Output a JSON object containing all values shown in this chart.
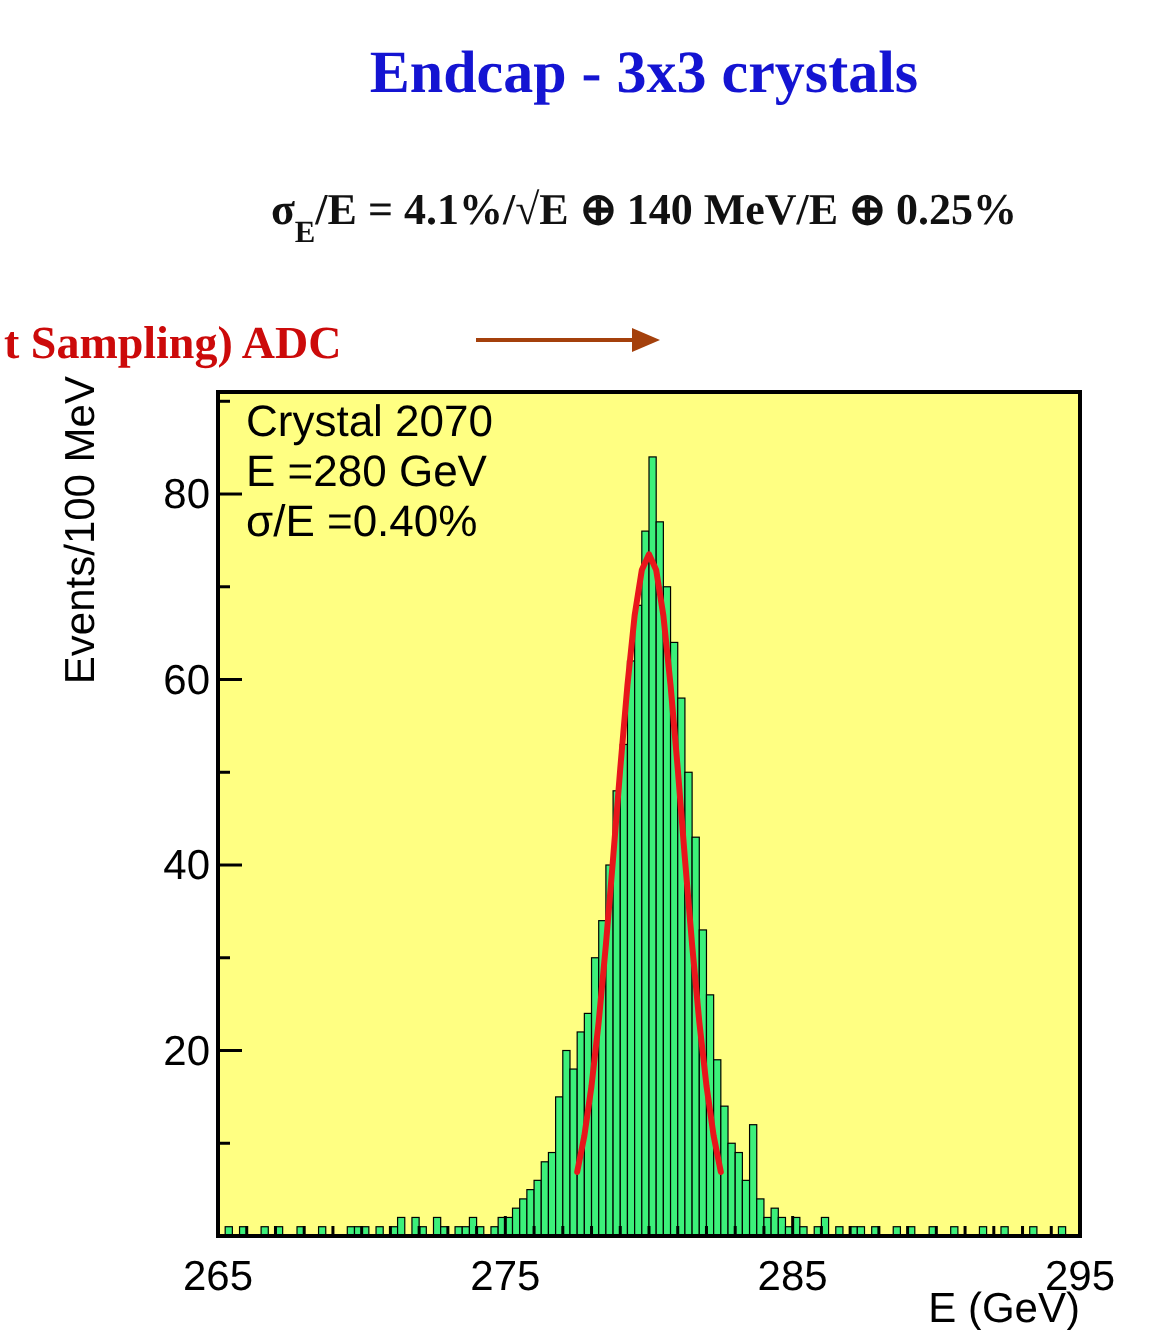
{
  "chart_data": {
    "type": "histogram",
    "title": "Endcap - 3x3 crystals",
    "subtitle": "σ$_{E}$/E = 4.1%/√E ⊕ 140 MeV/E ⊕ 0.25%",
    "xlabel": "E (GeV)",
    "ylabel": "Events/100 MeV",
    "annotations": [
      "t Sampling) ADC",
      "Crystal 2070",
      "E =280 GeV",
      "σ/E =0.40%"
    ],
    "xlim": [
      265,
      295
    ],
    "ylim": [
      0,
      91
    ],
    "xticks": [
      265,
      {
        "value": 266,
        "label": null
      },
      {
        "value": 267,
        "label": null
      },
      {
        "value": 268,
        "label": null
      },
      {
        "value": 269,
        "label": null
      },
      {
        "value": 270,
        "label": null
      },
      {
        "value": 271,
        "label": null
      },
      {
        "value": 272,
        "label": null
      },
      {
        "value": 273,
        "label": null
      },
      {
        "value": 274,
        "label": null
      },
      275,
      {
        "value": 276,
        "label": null
      },
      {
        "value": 277,
        "label": null
      },
      {
        "value": 278,
        "label": null
      },
      {
        "value": 279,
        "label": null
      },
      {
        "value": 280,
        "label": null
      },
      {
        "value": 281,
        "label": null
      },
      {
        "value": 282,
        "label": null
      },
      {
        "value": 283,
        "label": null
      },
      {
        "value": 284,
        "label": null
      },
      285,
      {
        "value": 286,
        "label": null
      },
      {
        "value": 287,
        "label": null
      },
      {
        "value": 288,
        "label": null
      },
      {
        "value": 289,
        "label": null
      },
      {
        "value": 290,
        "label": null
      },
      {
        "value": 291,
        "label": null
      },
      {
        "value": 292,
        "label": null
      },
      {
        "value": 293,
        "label": null
      },
      {
        "value": 294,
        "label": null
      },
      295
    ],
    "yticks": [
      {
        "value": 10,
        "label": null
      },
      20,
      {
        "value": 30,
        "label": null
      },
      40,
      {
        "value": 50,
        "label": null
      },
      60,
      {
        "value": 70,
        "label": null
      },
      80,
      {
        "value": 90,
        "label": null
      }
    ],
    "bins": [
      265,
      265.25,
      265.5,
      265.75,
      266,
      266.25,
      266.5,
      266.75,
      267,
      267.25,
      267.5,
      267.75,
      268,
      268.25,
      268.5,
      268.75,
      269,
      269.25,
      269.5,
      269.75,
      270,
      270.25,
      270.5,
      270.75,
      271,
      271.25,
      271.5,
      271.75,
      272,
      272.25,
      272.5,
      272.75,
      273,
      273.25,
      273.5,
      273.75,
      274,
      274.25,
      274.5,
      274.75,
      275,
      275.25,
      275.5,
      275.75,
      276,
      276.25,
      276.5,
      276.75,
      277,
      277.25,
      277.5,
      277.75,
      278,
      278.25,
      278.5,
      278.75,
      279,
      279.25,
      279.5,
      279.75,
      280,
      280.25,
      280.5,
      280.75,
      281,
      281.25,
      281.5,
      281.75,
      282,
      282.25,
      282.5,
      282.75,
      283,
      283.25,
      283.5,
      283.75,
      284,
      284.25,
      284.5,
      284.75,
      285,
      285.25,
      285.5,
      285.75,
      286,
      286.25,
      286.5,
      286.75,
      287,
      287.25,
      287.5,
      287.75,
      288,
      288.25,
      288.5,
      288.75,
      289,
      289.25,
      289.5,
      289.75,
      290,
      290.25,
      290.5,
      290.75,
      291,
      291.25,
      291.5,
      291.75,
      292,
      292.25,
      292.5,
      292.75,
      293,
      293.25,
      293.5,
      293.75,
      294,
      294.25,
      294.5,
      294.75,
      295
    ],
    "series": [
      {
        "color": "#3cf07a",
        "values": [
          0,
          1,
          0,
          1,
          0,
          0,
          1,
          0,
          1,
          0,
          0,
          1,
          0,
          0,
          1,
          0,
          0,
          0,
          1,
          1,
          1,
          0,
          1,
          0,
          1,
          2,
          0,
          2,
          1,
          0,
          2,
          1,
          0,
          1,
          1,
          2,
          1,
          0,
          1,
          2,
          2,
          3,
          4,
          5,
          6,
          8,
          9,
          15,
          20,
          18,
          22,
          24,
          30,
          34,
          40,
          48,
          53,
          62,
          68,
          76,
          84,
          77,
          70,
          64,
          58,
          50,
          43,
          33,
          26,
          19,
          14,
          10,
          9,
          6,
          12,
          4,
          2,
          3,
          2,
          1,
          2,
          1,
          0,
          1,
          2,
          0,
          1,
          0,
          1,
          1,
          0,
          1,
          0,
          0,
          1,
          0,
          1,
          0,
          0,
          1,
          0,
          0,
          1,
          0,
          0,
          0,
          1,
          0,
          0,
          1,
          0,
          0,
          0,
          1,
          0,
          0,
          0,
          1,
          0,
          0
        ]
      },
      {
        "type": "line",
        "color": "#e8161b",
        "x": [
          277.5,
          277.75,
          278,
          278.25,
          278.5,
          278.75,
          279,
          279.25,
          279.5,
          279.75,
          280,
          280.25,
          280.5,
          280.75,
          281,
          281.25,
          281.5,
          281.75,
          282,
          282.25,
          282.5
        ],
        "values": [
          6.9,
          10.8,
          16.2,
          23.1,
          31.4,
          40.7,
          50.4,
          59.4,
          66.9,
          71.8,
          73.5,
          71.8,
          66.9,
          59.4,
          50.4,
          40.7,
          31.4,
          23.1,
          16.2,
          10.8,
          6.9
        ]
      }
    ]
  }
}
